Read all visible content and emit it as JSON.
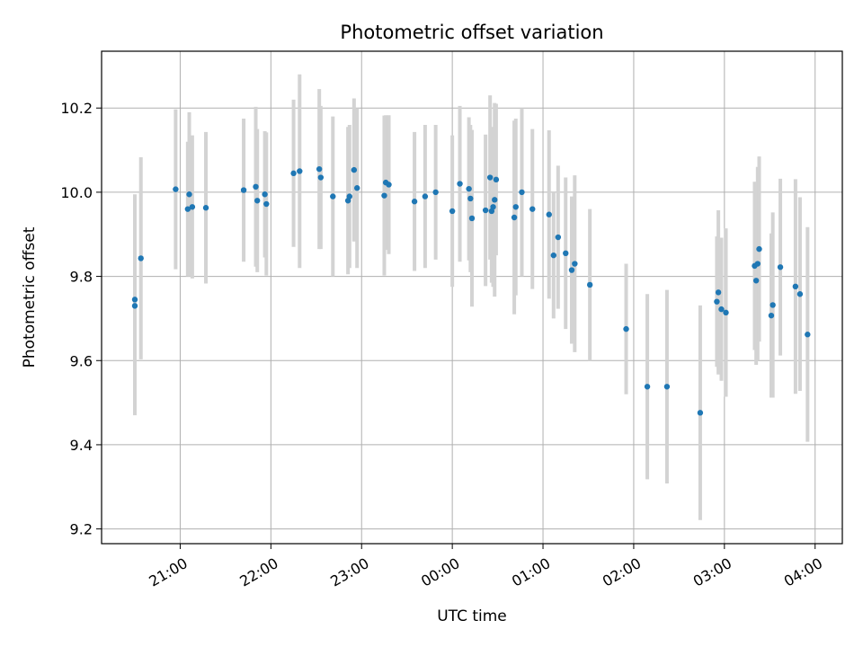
{
  "chart_data": {
    "type": "scatter",
    "title": "Photometric offset variation",
    "xlabel": "UTC time",
    "ylabel": "Photometric offset",
    "grid": true,
    "x_ticks": [
      "21:00",
      "22:00",
      "23:00",
      "00:00",
      "01:00",
      "02:00",
      "03:00",
      "04:00"
    ],
    "y_ticks": [
      "9.2",
      "9.4",
      "9.6",
      "9.8",
      "10.0",
      "10.2"
    ],
    "xlim": [
      "20:08",
      "04:18"
    ],
    "ylim": [
      9.165,
      10.335
    ],
    "colors": {
      "points": "#1f77b4",
      "errorbars": "#d3d3d3",
      "grid": "#b0b0b0"
    },
    "points": [
      {
        "t": "20:30",
        "y": 9.73,
        "err": 0.26
      },
      {
        "t": "20:30",
        "y": 9.745,
        "err": 0.25
      },
      {
        "t": "20:34",
        "y": 9.843,
        "err": 0.24
      },
      {
        "t": "20:57",
        "y": 10.007,
        "err": 0.19
      },
      {
        "t": "21:05",
        "y": 9.96,
        "err": 0.16
      },
      {
        "t": "21:06",
        "y": 9.995,
        "err": 0.195
      },
      {
        "t": "21:08",
        "y": 9.965,
        "err": 0.17
      },
      {
        "t": "21:17",
        "y": 9.963,
        "err": 0.18
      },
      {
        "t": "21:42",
        "y": 10.005,
        "err": 0.17
      },
      {
        "t": "21:50",
        "y": 10.013,
        "err": 0.19
      },
      {
        "t": "21:51",
        "y": 9.98,
        "err": 0.17
      },
      {
        "t": "21:56",
        "y": 9.995,
        "err": 0.15
      },
      {
        "t": "21:57",
        "y": 9.972,
        "err": 0.17
      },
      {
        "t": "22:15",
        "y": 10.045,
        "err": 0.175
      },
      {
        "t": "22:19",
        "y": 10.05,
        "err": 0.23
      },
      {
        "t": "22:32",
        "y": 10.055,
        "err": 0.19
      },
      {
        "t": "22:33",
        "y": 10.035,
        "err": 0.17
      },
      {
        "t": "22:41",
        "y": 9.99,
        "err": 0.19
      },
      {
        "t": "22:51",
        "y": 9.98,
        "err": 0.175
      },
      {
        "t": "22:52",
        "y": 9.99,
        "err": 0.17
      },
      {
        "t": "22:55",
        "y": 10.053,
        "err": 0.17
      },
      {
        "t": "22:57",
        "y": 10.01,
        "err": 0.19
      },
      {
        "t": "23:15",
        "y": 9.992,
        "err": 0.19
      },
      {
        "t": "23:16",
        "y": 10.023,
        "err": 0.16
      },
      {
        "t": "23:18",
        "y": 10.018,
        "err": 0.165
      },
      {
        "t": "23:35",
        "y": 9.978,
        "err": 0.165
      },
      {
        "t": "23:42",
        "y": 9.99,
        "err": 0.17
      },
      {
        "t": "23:49",
        "y": 10.0,
        "err": 0.16
      },
      {
        "t": "00:00",
        "y": 9.955,
        "err": 0.18
      },
      {
        "t": "00:05",
        "y": 10.02,
        "err": 0.185
      },
      {
        "t": "00:11",
        "y": 10.008,
        "err": 0.17
      },
      {
        "t": "00:12",
        "y": 9.985,
        "err": 0.175
      },
      {
        "t": "00:13",
        "y": 9.938,
        "err": 0.21
      },
      {
        "t": "00:22",
        "y": 9.957,
        "err": 0.18
      },
      {
        "t": "00:25",
        "y": 10.035,
        "err": 0.195
      },
      {
        "t": "00:26",
        "y": 9.955,
        "err": 0.17
      },
      {
        "t": "00:27",
        "y": 9.965,
        "err": 0.19
      },
      {
        "t": "00:28",
        "y": 9.982,
        "err": 0.23
      },
      {
        "t": "00:29",
        "y": 10.03,
        "err": 0.18
      },
      {
        "t": "00:41",
        "y": 9.94,
        "err": 0.23
      },
      {
        "t": "00:42",
        "y": 9.965,
        "err": 0.21
      },
      {
        "t": "00:46",
        "y": 10.0,
        "err": 0.2
      },
      {
        "t": "00:53",
        "y": 9.96,
        "err": 0.19
      },
      {
        "t": "01:04",
        "y": 9.947,
        "err": 0.2
      },
      {
        "t": "01:07",
        "y": 9.85,
        "err": 0.15
      },
      {
        "t": "01:10",
        "y": 9.893,
        "err": 0.17
      },
      {
        "t": "01:15",
        "y": 9.855,
        "err": 0.18
      },
      {
        "t": "01:19",
        "y": 9.815,
        "err": 0.175
      },
      {
        "t": "01:21",
        "y": 9.83,
        "err": 0.21
      },
      {
        "t": "01:31",
        "y": 9.78,
        "err": 0.18
      },
      {
        "t": "01:55",
        "y": 9.675,
        "err": 0.155
      },
      {
        "t": "02:09",
        "y": 9.538,
        "err": 0.22
      },
      {
        "t": "02:22",
        "y": 9.538,
        "err": 0.23
      },
      {
        "t": "02:44",
        "y": 9.476,
        "err": 0.255
      },
      {
        "t": "02:55",
        "y": 9.74,
        "err": 0.155
      },
      {
        "t": "02:56",
        "y": 9.762,
        "err": 0.195
      },
      {
        "t": "02:58",
        "y": 9.722,
        "err": 0.17
      },
      {
        "t": "03:01",
        "y": 9.714,
        "err": 0.2
      },
      {
        "t": "03:20",
        "y": 9.825,
        "err": 0.2
      },
      {
        "t": "03:21",
        "y": 9.79,
        "err": 0.2
      },
      {
        "t": "03:22",
        "y": 9.83,
        "err": 0.23
      },
      {
        "t": "03:23",
        "y": 9.865,
        "err": 0.22
      },
      {
        "t": "03:31",
        "y": 9.707,
        "err": 0.195
      },
      {
        "t": "03:32",
        "y": 9.732,
        "err": 0.22
      },
      {
        "t": "03:37",
        "y": 9.822,
        "err": 0.21
      },
      {
        "t": "03:47",
        "y": 9.776,
        "err": 0.255
      },
      {
        "t": "03:50",
        "y": 9.758,
        "err": 0.23
      },
      {
        "t": "03:55",
        "y": 9.662,
        "err": 0.255
      }
    ]
  }
}
